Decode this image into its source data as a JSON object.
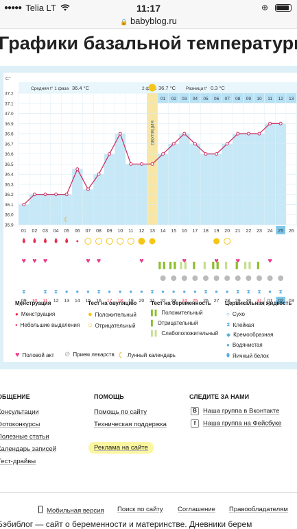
{
  "status_bar": {
    "carrier": "Telia LT",
    "time": "11:17"
  },
  "url_bar": {
    "domain": "babyblog.ru"
  },
  "page": {
    "title": "Графики базальной температуры"
  },
  "chart_header": {
    "unit": "C°",
    "phase1_label": "Средняя t° 1 фаза",
    "phase1_value": "36.4 °C",
    "phase2_label": "2 фаза",
    "phase2_value": "36.7 °C",
    "diff_label": "Разница t°",
    "diff_value": "0.3 °C",
    "ovulation_label": "ОВУЛЯЦИЯ",
    "month_left": "Март",
    "month_right": "Апрель"
  },
  "chart_data": {
    "type": "line",
    "ylabel": "C°",
    "ylim": [
      35.9,
      37.2
    ],
    "y_ticks": [
      "37.2",
      "37.1",
      "37.0",
      "36.9",
      "36.8",
      "36.7",
      "36.6",
      "36.5",
      "36.4",
      "36.3",
      "36.2",
      "36.1",
      "36.0",
      "35.9"
    ],
    "cycle_days": [
      "01",
      "02",
      "03",
      "04",
      "05",
      "06",
      "07",
      "08",
      "09",
      "10",
      "11",
      "12",
      "13",
      "14",
      "15",
      "16",
      "17",
      "18",
      "19",
      "20",
      "21",
      "22",
      "23",
      "24",
      "25",
      "26",
      "27",
      "28",
      "29",
      "30",
      "31"
    ],
    "values": [
      36.1,
      36.2,
      36.2,
      36.2,
      36.2,
      36.45,
      36.25,
      36.4,
      36.6,
      36.8,
      36.5,
      36.5,
      36.5,
      36.6,
      36.7,
      36.8,
      36.7,
      36.6,
      36.6,
      36.7,
      36.8,
      36.8,
      36.8,
      36.9,
      36.9
    ],
    "phase2_days": [
      "01",
      "02",
      "03",
      "04",
      "05",
      "06",
      "07",
      "08",
      "09",
      "10",
      "11",
      "12",
      "13",
      "14",
      "15",
      "16",
      "17"
    ],
    "ovulation_day": "13",
    "highlight_day": "28",
    "today_day": "25",
    "calendar_dates": [
      "09",
      "10",
      "11",
      "12",
      "13",
      "14",
      "15",
      "16",
      "17",
      "18",
      "19",
      "20",
      "21",
      "22",
      "23",
      "24",
      "25",
      "26",
      "27",
      "28",
      "29",
      "30",
      "31",
      "01",
      "02",
      "03",
      "04",
      "05",
      "06",
      "07",
      "08"
    ],
    "calendar_red": [
      "10",
      "11",
      "17",
      "18",
      "24",
      "25",
      "31",
      "07",
      "08"
    ],
    "today_date": "02"
  },
  "legend": {
    "menstruation": {
      "title": "Менструация",
      "items": [
        "Менструация",
        "Небольшие выделения"
      ]
    },
    "ovulation_test": {
      "title": "Тест на овуляцию",
      "items": [
        "Положительный",
        "Отрицательный"
      ]
    },
    "pregnancy_test": {
      "title": "Тест на беременность",
      "items": [
        "Положительный",
        "Отрицательный",
        "Слабоположительный"
      ]
    },
    "cervical": {
      "title": "Цервикальная жидкость",
      "items": [
        "Сухо",
        "Клейкая",
        "Кремообразная",
        "Водянистая",
        "Яичный белок"
      ]
    },
    "bottom": [
      "Половой акт",
      "Прием лекарств",
      "Лунный календарь"
    ]
  },
  "footer": {
    "col1_title": "ОБЩЕНИЕ",
    "col1_links": [
      "Консультации",
      "Фотоконкурсы",
      "Полезные статьи",
      "Календарь записей",
      "Тест-драйвы"
    ],
    "col2_title": "ПОМОЩЬ",
    "col2_links": [
      "Помощь по сайту",
      "Техническая поддержка",
      "Реклама на сайте"
    ],
    "col3_title": "СЛЕДИТЕ ЗА НАМИ",
    "col3_links": [
      "Наша группа в Вконтакте",
      "Наша группа на Фейсбуке"
    ],
    "bottom_links": [
      "Мобильная версия",
      "Поиск по сайту",
      "Соглашение",
      "Правообладателям"
    ],
    "tagline": "Бэбиблог — сайт о беременности и материнстве. Дневники берем"
  },
  "colors": {
    "chart_bar": "#c6e8f7",
    "chart_header": "#b7e1f4",
    "line": "#cc3366",
    "ovulation": "#f7e6a6",
    "accent_pink": "#f4a3b6",
    "menstruation": "#e8304f",
    "ovulation_icon": "#f5c518",
    "pregnancy": "#8bbf2a",
    "cervical": "#5aaee0"
  }
}
